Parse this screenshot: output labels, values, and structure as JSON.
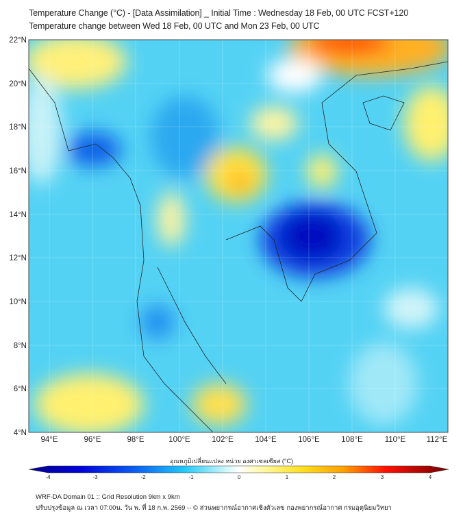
{
  "header": {
    "title_line1": "Temperature Change (°C) - [Data Assimilation] _ Initial Time : Wednesday 18 Feb, 00 UTC FCST+120",
    "title_line2": "Temperature change between Wed 18 Feb, 00 UTC and Mon 23 Feb, 00 UTC"
  },
  "map": {
    "lat_labels": [
      "22°N",
      "20°N",
      "18°N",
      "16°N",
      "14°N",
      "12°N",
      "10°N",
      "8°N",
      "6°N",
      "4°N"
    ],
    "lon_labels": [
      "94°E",
      "96°E",
      "98°E",
      "100°E",
      "102°E",
      "104°E",
      "106°E",
      "108°E",
      "110°E",
      "112°E"
    ]
  },
  "colorbar": {
    "label": "อุณหภูมิเปลี่ยนแปลง หน่วย องศาเซลเซียส (°C)",
    "ticks": [
      "-4",
      "-3",
      "-2",
      "-1",
      "0",
      "1",
      "2",
      "3",
      "4"
    ],
    "colors": [
      "#00007a",
      "#0000d0",
      "#1060f0",
      "#30c8f8",
      "#d8f8f8",
      "#ffffff",
      "#fff060",
      "#ffb000",
      "#ff3000",
      "#c00000",
      "#600000"
    ]
  },
  "footer": {
    "line1": "WRF-DA Domain 01 :: Grid Resolution 9km x 9km",
    "line2": "ปรับปรุงข้อมูล ณ เวลา 07:00น. วัน พ. ที่ 18 ก.พ. 2569 -- © ส่วนพยากรณ์อากาศเชิงตัวเลข กองพยากรณ์อากาศ กรมอุตุนิยมวิทยา"
  }
}
